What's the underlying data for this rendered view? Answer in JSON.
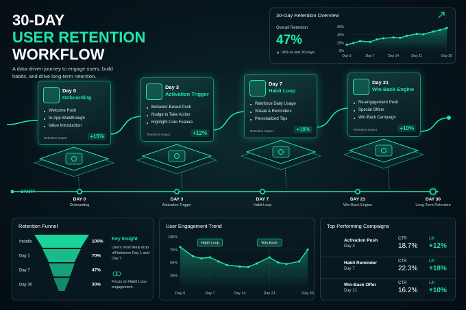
{
  "header": {
    "line1": "30-DAY",
    "line2": "USER RETENTION",
    "line3": "WORKFLOW",
    "subtitle": "A data-driven journey to engage users, build habits, and drive long-term retention."
  },
  "stages": [
    {
      "day": "Day 0",
      "name": "Onboarding",
      "actions": [
        "Welcome Push",
        "In-App Walkthrough",
        "Value Introduction"
      ],
      "impact_label": "Retention Impact",
      "impact": "+15%"
    },
    {
      "day": "Day 3",
      "name": "Activation Trigger",
      "actions": [
        "Behavior-Based Push",
        "Nudge to Take Action",
        "Highlight Core Feature"
      ],
      "impact_label": "Retention Impact",
      "impact": "+12%"
    },
    {
      "day": "Day 7",
      "name": "Habit Loop",
      "actions": [
        "Reinforce Daily Usage",
        "Streak & Reminders",
        "Personalized Tips"
      ],
      "impact_label": "Retention Impact",
      "impact": "+18%"
    },
    {
      "day": "Day 21",
      "name": "Win-Back Engine",
      "actions": [
        "Re-engagement Push",
        "Special Offers",
        "Win-Back Campaign"
      ],
      "impact_label": "Retention Impact",
      "impact": "+10%"
    }
  ],
  "timeline": {
    "start": "START",
    "points": [
      {
        "day": "DAY 0",
        "label": "Onboarding"
      },
      {
        "day": "DAY 3",
        "label": "Activation Trigger"
      },
      {
        "day": "DAY 7",
        "label": "Habit Loop"
      },
      {
        "day": "DAY 21",
        "label": "Win-Back Engine"
      },
      {
        "day": "DAY 30",
        "label": "Long-Term Retention"
      }
    ]
  },
  "chart_data": [
    {
      "type": "line",
      "title": "30-Day Retention Overview",
      "stat_label": "Overall Retention",
      "stat_value": "47%",
      "stat_change": "▲ 18% vs last 30 days",
      "x": [
        0,
        2,
        4,
        7,
        9,
        11,
        14,
        16,
        18,
        21,
        23,
        26,
        28,
        30
      ],
      "values": [
        15,
        19,
        24,
        22,
        28,
        31,
        33,
        32,
        37,
        42,
        41,
        48,
        52,
        57
      ],
      "color": "#1de9a6",
      "grid": true,
      "xlim": [
        0,
        30
      ],
      "xticks": [
        {
          "value": 0,
          "label": "Day 0"
        },
        {
          "value": 7,
          "label": "Day 7"
        },
        {
          "value": 14,
          "label": "Day 14"
        },
        {
          "value": 21,
          "label": "Day 21"
        },
        {
          "value": 30,
          "label": "Day 30"
        }
      ],
      "ylim": [
        0,
        60
      ],
      "yticks": [
        {
          "value": 0,
          "label": "0%"
        },
        {
          "value": 20,
          "label": "20%"
        },
        {
          "value": 40,
          "label": "40%"
        },
        {
          "value": 60,
          "label": "60%"
        }
      ]
    },
    {
      "type": "funnel",
      "title": "Retention Funnel",
      "categories": [
        "Installs",
        "Day 1",
        "Day 7",
        "Day 30"
      ],
      "values": [
        100,
        70,
        47,
        30
      ],
      "value_labels": [
        "100%",
        "70%",
        "47%",
        "30%"
      ],
      "color": "#1de9a6",
      "insight_title": "Key Insight",
      "insight_text": "Users most likely drop off between Day 1 and Day 7.",
      "insight_action": "Focus on Habit Loop engagement."
    },
    {
      "type": "line",
      "title": "User Engagement Trend",
      "x": [
        0,
        3,
        5,
        7,
        9,
        11,
        14,
        16,
        18,
        21,
        23,
        25,
        28,
        30
      ],
      "values": [
        80,
        62,
        58,
        60,
        52,
        45,
        42,
        41,
        48,
        60,
        50,
        47,
        52,
        75
      ],
      "color": "#1de9a6",
      "grid": true,
      "annotations": [
        "Habit Loop",
        "Win-Back"
      ],
      "xlim": [
        0,
        30
      ],
      "xticks": [
        {
          "value": 0,
          "label": "Day 0"
        },
        {
          "value": 7,
          "label": "Day 7"
        },
        {
          "value": 14,
          "label": "Day 14"
        },
        {
          "value": 21,
          "label": "Day 21"
        },
        {
          "value": 30,
          "label": "Day 30"
        }
      ],
      "ylim": [
        0,
        100
      ],
      "yticks": [
        {
          "value": 25,
          "label": "25%"
        },
        {
          "value": 50,
          "label": "50%"
        },
        {
          "value": 75,
          "label": "75%"
        },
        {
          "value": 100,
          "label": "100%"
        }
      ]
    }
  ],
  "campaigns": {
    "title": "Top Performing Campaigns",
    "columns": [
      "CTR",
      "Lift"
    ],
    "rows": [
      {
        "name": "Activation Push",
        "day": "Day 3",
        "ctr": "18.7%",
        "lift": "+12%"
      },
      {
        "name": "Habit Reminder",
        "day": "Day 7",
        "ctr": "22.3%",
        "lift": "+18%"
      },
      {
        "name": "Win-Back Offer",
        "day": "Day 21",
        "ctr": "16.2%",
        "lift": "+10%"
      }
    ]
  }
}
